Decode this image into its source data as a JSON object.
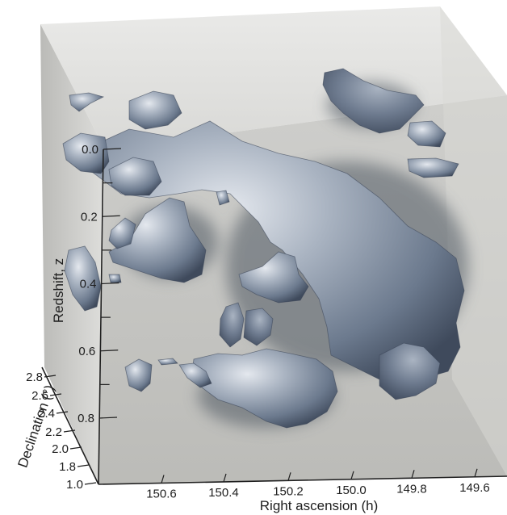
{
  "chart_data": {
    "type": "volume-3d",
    "title": "",
    "axes": {
      "z": {
        "label": "Redshift, z",
        "ticks": [
          "0.0",
          "0.2",
          "0.4",
          "0.6",
          "0.8"
        ],
        "range": [
          0.0,
          0.8
        ]
      },
      "x": {
        "label": "Right ascension (h)",
        "ticks": [
          "150.6",
          "150.4",
          "150.2",
          "150.0",
          "149.8",
          "149.6"
        ],
        "range": [
          150.6,
          149.6
        ],
        "direction": "decreasing"
      },
      "y": {
        "label": "Declination (°)",
        "ticks": [
          "1.0",
          "1.8",
          "2.0",
          "2.2",
          "2.4",
          "2.6",
          "2.8"
        ],
        "range": [
          1.0,
          2.8
        ]
      }
    },
    "surface_color": "#8f9db0",
    "background_color": "#b8b8b4",
    "grid": false,
    "legend": "none"
  }
}
